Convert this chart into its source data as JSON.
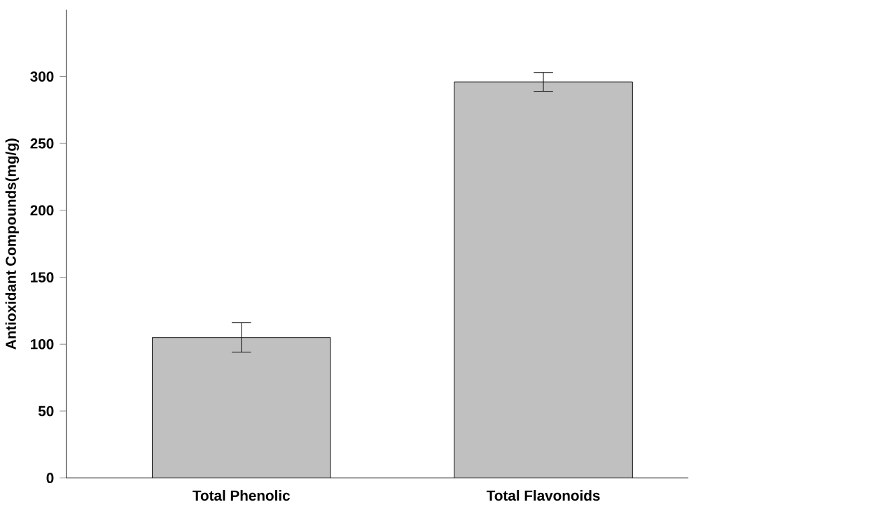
{
  "chart_data": {
    "type": "bar",
    "ylabel": "Antioxidant Compounds(mg/g)",
    "categories": [
      "Total Phenolic",
      "Total Flavonoids"
    ],
    "values": [
      105,
      296
    ],
    "errors": [
      11,
      7
    ],
    "color": "#c0c0c0",
    "ylim": [
      0,
      350
    ],
    "yticks": [
      0,
      50,
      100,
      150,
      200,
      250,
      300
    ],
    "grid": false
  }
}
